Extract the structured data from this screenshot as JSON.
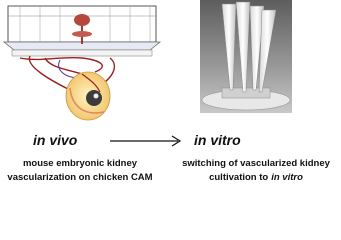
{
  "labels": {
    "left": "in vivo",
    "right": "in vitro"
  },
  "captions": {
    "left": [
      "mouse embryonic kidney",
      "vascularization on chicken CAM"
    ],
    "right": {
      "line1": "switching of vascularized kidney",
      "line2": [
        "cultivation to",
        "in vitro"
      ]
    }
  }
}
